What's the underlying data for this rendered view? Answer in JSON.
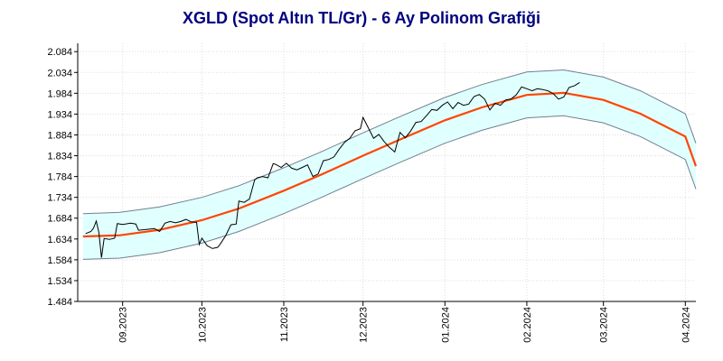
{
  "chart_data": {
    "type": "line",
    "title": "XGLD (Spot Altın TL/Gr) - 6 Ay Polinom Grafiği",
    "xlabel": "",
    "ylabel": "",
    "ylim": [
      1.484,
      2.104
    ],
    "y_ticks": [
      "2.084",
      "2.034",
      "1.984",
      "1.934",
      "1.884",
      "1.834",
      "1.784",
      "1.734",
      "1.684",
      "1.634",
      "1.584",
      "1.534",
      "1.484"
    ],
    "x_ticks": [
      "09.2023",
      "10.2023",
      "11.2023",
      "12.2023",
      "01.2024",
      "02.2024",
      "03.2024",
      "04.2024"
    ],
    "grid": true,
    "colors": {
      "price": "#000000",
      "trend": "#ff4500",
      "band_fill": "#e0ffff",
      "band_edge": "#708090",
      "grid": "#dddddd",
      "title": "#000080"
    },
    "series": [
      {
        "values": [
          [
            "2023-08-18",
            1.647
          ],
          [
            "2023-08-20",
            1.652
          ],
          [
            "2023-08-21",
            1.66
          ],
          [
            "2023-08-22",
            1.677
          ],
          [
            "2023-08-23",
            1.65
          ],
          [
            "2023-08-24",
            1.589
          ],
          [
            "2023-08-25",
            1.635
          ],
          [
            "2023-08-27",
            1.633
          ],
          [
            "2023-08-29",
            1.636
          ],
          [
            "2023-08-30",
            1.671
          ],
          [
            "2023-09-01",
            1.669
          ],
          [
            "2023-09-04",
            1.672
          ],
          [
            "2023-09-06",
            1.67
          ],
          [
            "2023-09-07",
            1.655
          ],
          [
            "2023-09-10",
            1.657
          ],
          [
            "2023-09-13",
            1.659
          ],
          [
            "2023-09-15",
            1.652
          ],
          [
            "2023-09-17",
            1.672
          ],
          [
            "2023-09-19",
            1.676
          ],
          [
            "2023-09-21",
            1.673
          ],
          [
            "2023-09-23",
            1.676
          ],
          [
            "2023-09-25",
            1.681
          ],
          [
            "2023-09-27",
            1.675
          ],
          [
            "2023-09-29",
            1.674
          ],
          [
            "2023-09-30",
            1.621
          ],
          [
            "2023-10-01",
            1.636
          ],
          [
            "2023-10-03",
            1.618
          ],
          [
            "2023-10-05",
            1.611
          ],
          [
            "2023-10-07",
            1.614
          ],
          [
            "2023-10-08",
            1.622
          ],
          [
            "2023-10-10",
            1.642
          ],
          [
            "2023-10-12",
            1.668
          ],
          [
            "2023-10-14",
            1.67
          ],
          [
            "2023-10-15",
            1.725
          ],
          [
            "2023-10-17",
            1.722
          ],
          [
            "2023-10-19",
            1.73
          ],
          [
            "2023-10-21",
            1.776
          ],
          [
            "2023-10-22",
            1.781
          ],
          [
            "2023-10-24",
            1.784
          ],
          [
            "2023-10-26",
            1.781
          ],
          [
            "2023-10-28",
            1.815
          ],
          [
            "2023-10-29",
            1.813
          ],
          [
            "2023-10-31",
            1.806
          ],
          [
            "2023-11-02",
            1.816
          ],
          [
            "2023-11-04",
            1.804
          ],
          [
            "2023-11-06",
            1.8
          ],
          [
            "2023-11-08",
            1.806
          ],
          [
            "2023-11-10",
            1.812
          ],
          [
            "2023-11-12",
            1.784
          ],
          [
            "2023-11-14",
            1.79
          ],
          [
            "2023-11-16",
            1.822
          ],
          [
            "2023-11-18",
            1.825
          ],
          [
            "2023-11-20",
            1.831
          ],
          [
            "2023-11-22",
            1.85
          ],
          [
            "2023-11-24",
            1.866
          ],
          [
            "2023-11-26",
            1.876
          ],
          [
            "2023-11-28",
            1.894
          ],
          [
            "2023-11-30",
            1.899
          ],
          [
            "2023-12-01",
            1.926
          ],
          [
            "2023-12-03",
            1.901
          ],
          [
            "2023-12-05",
            1.876
          ],
          [
            "2023-12-07",
            1.885
          ],
          [
            "2023-12-09",
            1.868
          ],
          [
            "2023-12-11",
            1.854
          ],
          [
            "2023-12-13",
            1.843
          ],
          [
            "2023-12-15",
            1.89
          ],
          [
            "2023-12-17",
            1.877
          ],
          [
            "2023-12-19",
            1.893
          ],
          [
            "2023-12-21",
            1.914
          ],
          [
            "2023-12-23",
            1.916
          ],
          [
            "2023-12-25",
            1.93
          ],
          [
            "2023-12-27",
            1.945
          ],
          [
            "2023-12-29",
            1.943
          ],
          [
            "2023-12-31",
            1.955
          ],
          [
            "2024-01-02",
            1.963
          ],
          [
            "2024-01-04",
            1.947
          ],
          [
            "2024-01-06",
            1.962
          ],
          [
            "2024-01-08",
            1.955
          ],
          [
            "2024-01-10",
            1.958
          ],
          [
            "2024-01-12",
            1.976
          ],
          [
            "2024-01-14",
            1.981
          ],
          [
            "2024-01-16",
            1.97
          ],
          [
            "2024-01-18",
            1.944
          ],
          [
            "2024-01-20",
            1.96
          ],
          [
            "2024-01-22",
            1.955
          ],
          [
            "2024-01-24",
            1.968
          ],
          [
            "2024-01-26",
            1.97
          ],
          [
            "2024-01-28",
            1.98
          ],
          [
            "2024-01-30",
            1.999
          ],
          [
            "2024-02-01",
            1.995
          ],
          [
            "2024-02-03",
            1.99
          ],
          [
            "2024-02-05",
            1.995
          ],
          [
            "2024-02-07",
            1.993
          ],
          [
            "2024-02-09",
            1.99
          ],
          [
            "2024-02-11",
            1.983
          ],
          [
            "2024-02-13",
            1.97
          ],
          [
            "2024-02-15",
            1.975
          ],
          [
            "2024-02-17",
            1.998
          ],
          [
            "2024-02-19",
            2.002
          ],
          [
            "2024-02-21",
            2.01
          ]
        ]
      },
      {
        "values": [
          [
            "2023-08-17",
            1.64
          ],
          [
            "2023-08-31",
            1.643
          ],
          [
            "2023-09-15",
            1.656
          ],
          [
            "2023-10-01",
            1.679
          ],
          [
            "2023-10-15",
            1.707
          ],
          [
            "2023-11-01",
            1.75
          ],
          [
            "2023-11-15",
            1.788
          ],
          [
            "2023-12-01",
            1.834
          ],
          [
            "2023-12-15",
            1.873
          ],
          [
            "2024-01-01",
            1.919
          ],
          [
            "2024-01-15",
            1.95
          ],
          [
            "2024-02-01",
            1.98
          ],
          [
            "2024-02-15",
            1.985
          ],
          [
            "2024-03-01",
            1.968
          ],
          [
            "2024-03-15",
            1.935
          ],
          [
            "2024-04-01",
            1.88
          ],
          [
            "2024-04-05",
            1.809
          ]
        ]
      }
    ],
    "band": {
      "offset": 0.055
    }
  }
}
